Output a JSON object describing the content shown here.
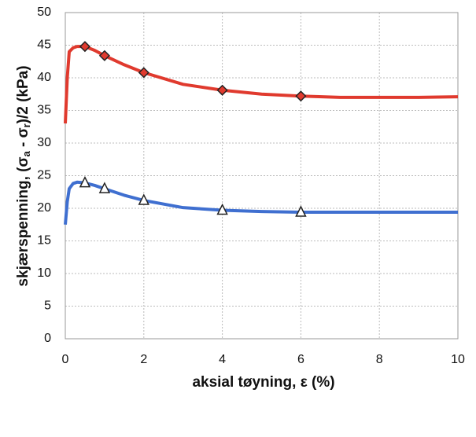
{
  "chart_data": {
    "type": "line",
    "xlabel": "aksial tøyning, ε (%)",
    "ylabel_parts": [
      "skjærspenning, (σ",
      "a",
      " - σ",
      "r",
      ")/2 (kPa)"
    ],
    "x": [
      0,
      0.05,
      0.1,
      0.2,
      0.3,
      0.5,
      0.75,
      1,
      1.5,
      2,
      3,
      4,
      5,
      6,
      7,
      8,
      9,
      10
    ],
    "series": [
      {
        "color": "#e03a2e",
        "marker": "diamond",
        "values": [
          33,
          40,
          44,
          44.6,
          44.8,
          44.8,
          44.2,
          43.4,
          42,
          40.8,
          39,
          38.1,
          37.5,
          37.2,
          37,
          37,
          37,
          37.1
        ],
        "marker_x": [
          0.5,
          1,
          2,
          4,
          6
        ],
        "marker_values": [
          44.8,
          43.4,
          40.8,
          38.1,
          37.2
        ]
      },
      {
        "color": "#3f6fd0",
        "marker": "triangle",
        "values": [
          17.5,
          21,
          23,
          23.8,
          24,
          23.9,
          23.5,
          23,
          22,
          21.2,
          20.1,
          19.7,
          19.5,
          19.4,
          19.4,
          19.4,
          19.4,
          19.4
        ],
        "marker_x": [
          0.5,
          1,
          2,
          4,
          6
        ],
        "marker_values": [
          23.9,
          23,
          21.2,
          19.7,
          19.4
        ]
      }
    ],
    "xlim": [
      0,
      10
    ],
    "xticks": [
      0,
      2,
      4,
      6,
      8,
      10
    ],
    "ylim": [
      0,
      50
    ],
    "yticks": [
      0,
      5,
      10,
      15,
      20,
      25,
      30,
      35,
      40,
      45,
      50
    ],
    "grid": true
  }
}
